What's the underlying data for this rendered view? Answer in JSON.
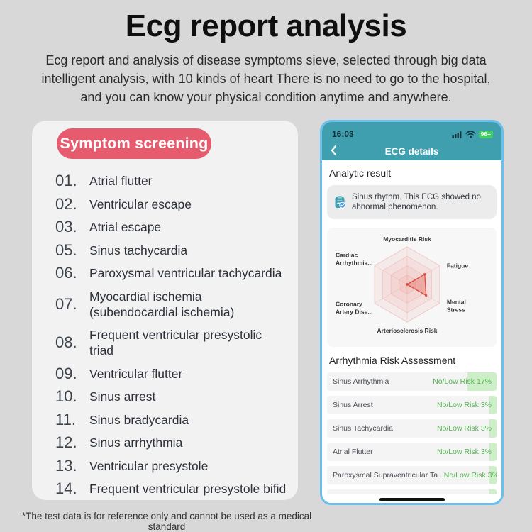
{
  "page": {
    "title": "Ecg report analysis",
    "subtitle_lines": [
      "Ecg report and analysis of disease symptoms sieve, selected through big data",
      "intelligent analysis, with 10 kinds of heart There is no need to go to the hospital,",
      "and you can know your physical condition anytime and anywhere."
    ],
    "footnote": "*The test data is for reference only and cannot be used as a medical standard"
  },
  "symptom_panel": {
    "badge_label": "Symptom screening",
    "items": [
      {
        "num": "01.",
        "label": "Atrial flutter"
      },
      {
        "num": "02.",
        "label": "Ventricular escape"
      },
      {
        "num": "03.",
        "label": "Atrial escape"
      },
      {
        "num": "05.",
        "label": "Sinus tachycardia"
      },
      {
        "num": "06.",
        "label": "Paroxysmal ventricular tachycardia"
      },
      {
        "num": "07.",
        "label": [
          "Myocardial ischemia",
          "(subendocardial ischemia)"
        ]
      },
      {
        "num": "08.",
        "label": "Frequent ventricular presystolic triad"
      },
      {
        "num": "09.",
        "label": "Ventricular flutter"
      },
      {
        "num": "10.",
        "label": "Sinus arrest"
      },
      {
        "num": "11.",
        "label": "Sinus bradycardia"
      },
      {
        "num": "12.",
        "label": "Sinus arrhythmia"
      },
      {
        "num": "13.",
        "label": "Ventricular presystole"
      },
      {
        "num": "14.",
        "label": "Frequent ventricular presystole bifid"
      }
    ]
  },
  "phone": {
    "status_bar": {
      "time": "16:03",
      "battery": "96+"
    },
    "nav": {
      "title": "ECG details"
    },
    "analytic": {
      "heading": "Analytic result",
      "message": "Sinus rhythm. This ECG showed no abnormal phenomenon."
    },
    "risk_section": {
      "heading": "Arrhythmia Risk Assessment",
      "rows": [
        {
          "label": "Sinus Arrhythmia",
          "value": "No/Low Risk 17%",
          "percent": 17
        },
        {
          "label": "Sinus Arrest",
          "value": "No/Low Risk 3%",
          "percent": 3
        },
        {
          "label": "Sinus Tachycardia",
          "value": "No/Low Risk 3%",
          "percent": 3
        },
        {
          "label": "Atrial Flutter",
          "value": "No/Low Risk 3%",
          "percent": 3
        },
        {
          "label": "Paroxysmal Supraventricular Ta...",
          "value": "No/Low Risk 3%",
          "percent": 3
        }
      ]
    }
  },
  "chart_data": {
    "type": "radar",
    "title": "",
    "categories": [
      "Myocarditis Risk",
      "Fatigue",
      "Mental\nStress",
      "Arteriosclerosis Risk",
      "Coronary\nArtery Dise...",
      "Cardiac\nArrhythmia..."
    ],
    "values": [
      0,
      54,
      58,
      0,
      0,
      0
    ],
    "max": 100,
    "rings": 4,
    "grid": "nested-hexagons",
    "legend": "none",
    "series_color": "#db5044",
    "ring_color": "#e9897d"
  },
  "colors": {
    "bg": "#d8d8d8",
    "card": "#f2f2f3",
    "badge_pink": "#e65b6e",
    "accent_teal": "#409fae",
    "phone_border": "#69c0ee",
    "risk_green": "#53b44e",
    "risk_green_bg": "#cdefc8",
    "battery_green": "#3fce5f",
    "radar_red": "#db5044"
  }
}
